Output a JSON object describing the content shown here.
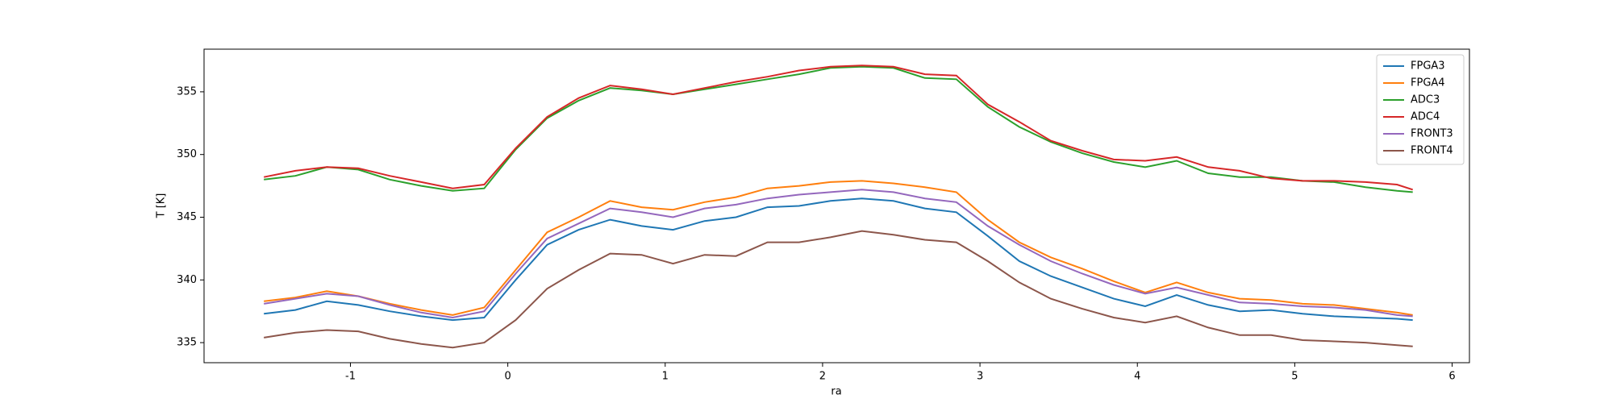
{
  "chart_data": {
    "type": "line",
    "xlabel": "ra",
    "ylabel": "T [K]",
    "x": [
      -1.55,
      -1.35,
      -1.15,
      -0.95,
      -0.75,
      -0.55,
      -0.35,
      -0.15,
      0.05,
      0.25,
      0.45,
      0.65,
      0.85,
      1.05,
      1.25,
      1.45,
      1.65,
      1.85,
      2.05,
      2.25,
      2.45,
      2.65,
      2.85,
      3.05,
      3.25,
      3.45,
      3.65,
      3.85,
      4.05,
      4.25,
      4.45,
      4.65,
      4.85,
      5.05,
      5.25,
      5.45,
      5.65,
      5.75
    ],
    "series": [
      {
        "name": "FPGA3",
        "color": "#1f77b4",
        "values": [
          337.3,
          337.6,
          338.3,
          338.0,
          337.5,
          337.1,
          336.8,
          337.0,
          340.0,
          342.8,
          344.0,
          344.8,
          344.3,
          344.0,
          344.7,
          345.0,
          345.8,
          345.9,
          346.3,
          346.5,
          346.3,
          345.7,
          345.4,
          343.5,
          341.5,
          340.3,
          339.4,
          338.5,
          337.9,
          338.8,
          338.0,
          337.5,
          337.6,
          337.3,
          337.1,
          337.0,
          336.9,
          336.8
        ]
      },
      {
        "name": "FPGA4",
        "color": "#ff7f0e",
        "values": [
          338.3,
          338.6,
          339.1,
          338.7,
          338.1,
          337.6,
          337.2,
          337.8,
          340.8,
          343.8,
          345.0,
          346.3,
          345.8,
          345.6,
          346.2,
          346.6,
          347.3,
          347.5,
          347.8,
          347.9,
          347.7,
          347.4,
          347.0,
          344.8,
          343.0,
          341.8,
          340.9,
          339.9,
          339.0,
          339.8,
          339.0,
          338.5,
          338.4,
          338.1,
          338.0,
          337.7,
          337.4,
          337.2
        ]
      },
      {
        "name": "ADC3",
        "color": "#2ca02c",
        "values": [
          348.0,
          348.3,
          349.0,
          348.8,
          348.0,
          347.5,
          347.1,
          347.3,
          350.4,
          352.9,
          354.3,
          355.3,
          355.1,
          354.8,
          355.2,
          355.6,
          356.0,
          356.4,
          356.9,
          357.0,
          356.9,
          356.1,
          356.0,
          353.8,
          352.2,
          351.0,
          350.1,
          349.4,
          349.0,
          349.5,
          348.5,
          348.2,
          348.2,
          347.9,
          347.8,
          347.4,
          347.1,
          347.0
        ]
      },
      {
        "name": "ADC4",
        "color": "#d62728",
        "values": [
          348.2,
          348.7,
          349.0,
          348.9,
          348.3,
          347.8,
          347.3,
          347.6,
          350.5,
          353.0,
          354.5,
          355.5,
          355.2,
          354.8,
          355.3,
          355.8,
          356.2,
          356.7,
          357.0,
          357.1,
          357.0,
          356.4,
          356.3,
          354.0,
          352.6,
          351.1,
          350.3,
          349.6,
          349.5,
          349.8,
          349.0,
          348.7,
          348.1,
          347.9,
          347.9,
          347.8,
          347.6,
          347.2
        ]
      },
      {
        "name": "FRONT3",
        "color": "#9467bd",
        "values": [
          338.1,
          338.5,
          338.9,
          338.7,
          338.0,
          337.4,
          337.0,
          337.5,
          340.5,
          343.3,
          344.5,
          345.7,
          345.4,
          345.0,
          345.7,
          346.0,
          346.5,
          346.8,
          347.0,
          347.2,
          347.0,
          346.5,
          346.2,
          344.3,
          342.8,
          341.5,
          340.5,
          339.6,
          338.9,
          339.4,
          338.8,
          338.2,
          338.1,
          337.9,
          337.8,
          337.6,
          337.2,
          337.1
        ]
      },
      {
        "name": "FRONT4",
        "color": "#8c564b",
        "values": [
          335.4,
          335.8,
          336.0,
          335.9,
          335.3,
          334.9,
          334.6,
          335.0,
          336.8,
          339.3,
          340.8,
          342.1,
          342.0,
          341.3,
          342.0,
          341.9,
          343.0,
          343.0,
          343.4,
          343.9,
          343.6,
          343.2,
          343.0,
          341.5,
          339.8,
          338.5,
          337.7,
          337.0,
          336.6,
          337.1,
          336.2,
          335.6,
          335.6,
          335.2,
          335.1,
          335.0,
          334.8,
          334.7
        ]
      }
    ],
    "xlim": [
      -1.93,
      6.11
    ],
    "xticks": [
      -1,
      0,
      1,
      2,
      3,
      4,
      5,
      6
    ],
    "ylim": [
      333.4,
      358.4
    ],
    "yticks": [
      335,
      340,
      345,
      350,
      355
    ],
    "grid": false,
    "legend": "upper right"
  }
}
